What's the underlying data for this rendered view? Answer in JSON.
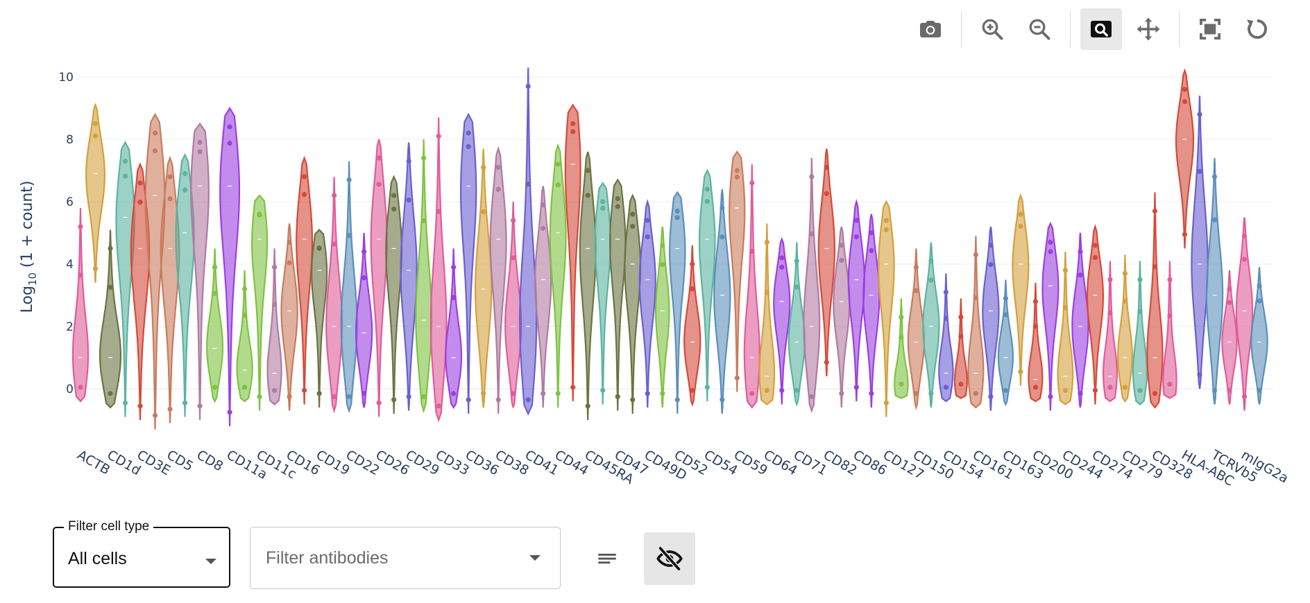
{
  "toolbar": {
    "buttons": [
      {
        "icon": "camera-icon",
        "label": "Download plot as png"
      },
      {
        "icon": "zoom-in-icon",
        "label": "Zoom in"
      },
      {
        "icon": "zoom-out-icon",
        "label": "Zoom out"
      },
      {
        "icon": "zoom-icon",
        "label": "Zoom",
        "active": true
      },
      {
        "icon": "pan-icon",
        "label": "Pan"
      },
      {
        "icon": "autoscale-icon",
        "label": "Autoscale"
      },
      {
        "icon": "reset-axes-icon",
        "label": "Reset axes"
      }
    ]
  },
  "controls": {
    "cell_filter": {
      "label": "Filter cell type",
      "value": "All cells"
    },
    "antibody_filter": {
      "placeholder": "Filter antibodies"
    },
    "list_icon": "list-icon",
    "visibility_icon": "eye-off-icon"
  },
  "chart_data": {
    "type": "violin",
    "ylabel": "Log10 (1 + count)",
    "ylabel_parts": {
      "base": "Log",
      "sub": "10",
      "rest": " (1 + count)"
    },
    "ylim": [
      -1.4,
      10.5
    ],
    "yticks": [
      0,
      2,
      4,
      6,
      8,
      10
    ],
    "grid": true,
    "series": [
      {
        "name": "ACTB",
        "color": "#e05c9a",
        "min": -0.4,
        "max": 5.8,
        "peak": 1.0,
        "width": 0.6
      },
      {
        "name": "ACTB",
        "color": "#d4a03e",
        "min": 3.4,
        "max": 9.1,
        "peak": 6.9,
        "width": 0.7
      },
      {
        "name": "CD1d",
        "color": "#6b7342",
        "min": -0.6,
        "max": 5.1,
        "peak": 1.0,
        "width": 0.8
      },
      {
        "name": "CD1d",
        "color": "#5cb3a0",
        "min": -0.9,
        "max": 7.9,
        "peak": 5.5,
        "width": 0.7
      },
      {
        "name": "CD3E",
        "color": "#d44a3a",
        "min": -1.0,
        "max": 7.2,
        "peak": 4.5,
        "width": 0.7
      },
      {
        "name": "CD3E",
        "color": "#c97b5d",
        "min": -1.3,
        "max": 8.8,
        "peak": 6.2,
        "width": 0.75
      },
      {
        "name": "CD5",
        "color": "#c97b5d",
        "min": -1.1,
        "max": 7.4,
        "peak": 4.5,
        "width": 0.7
      },
      {
        "name": "CD5",
        "color": "#5cb3a0",
        "min": -0.9,
        "max": 7.5,
        "peak": 5.0,
        "width": 0.7
      },
      {
        "name": "CD8",
        "color": "#b07aa1",
        "min": -1.0,
        "max": 8.5,
        "peak": 6.5,
        "width": 0.7
      },
      {
        "name": "CD8",
        "color": "#7fc241",
        "min": -0.4,
        "max": 4.5,
        "peak": 1.3,
        "width": 0.6
      },
      {
        "name": "CD11a",
        "color": "#9b3fe0",
        "min": -1.2,
        "max": 9.0,
        "peak": 6.5,
        "width": 0.75
      },
      {
        "name": "CD11a",
        "color": "#7fc241",
        "min": -0.4,
        "max": 3.8,
        "peak": 0.6,
        "width": 0.6
      },
      {
        "name": "CD11c",
        "color": "#7fc241",
        "min": -0.7,
        "max": 6.2,
        "peak": 4.8,
        "width": 0.6
      },
      {
        "name": "CD11c",
        "color": "#b07aa1",
        "min": -0.5,
        "max": 4.5,
        "peak": 0.5,
        "width": 0.55
      },
      {
        "name": "CD16",
        "color": "#c97b5d",
        "min": -0.7,
        "max": 5.3,
        "peak": 2.5,
        "width": 0.6
      },
      {
        "name": "CD16",
        "color": "#d44a3a",
        "min": -0.5,
        "max": 7.4,
        "peak": 4.8,
        "width": 0.6
      },
      {
        "name": "CD19",
        "color": "#6b7342",
        "min": -0.6,
        "max": 5.1,
        "peak": 3.8,
        "width": 0.6
      },
      {
        "name": "CD19",
        "color": "#e05c9a",
        "min": -0.7,
        "max": 6.8,
        "peak": 2.0,
        "width": 0.6
      },
      {
        "name": "CD22",
        "color": "#5b8fb9",
        "min": -0.7,
        "max": 7.3,
        "peak": 2.0,
        "width": 0.6
      },
      {
        "name": "CD22",
        "color": "#9b3fe0",
        "min": -0.6,
        "max": 5.0,
        "peak": 1.8,
        "width": 0.6
      },
      {
        "name": "CD26",
        "color": "#e05c9a",
        "min": -0.9,
        "max": 8.0,
        "peak": 4.8,
        "width": 0.6
      },
      {
        "name": "CD26",
        "color": "#6b7342",
        "min": -0.8,
        "max": 6.8,
        "peak": 4.5,
        "width": 0.6
      },
      {
        "name": "CD29",
        "color": "#6a5fd0",
        "min": -0.7,
        "max": 7.9,
        "peak": 3.8,
        "width": 0.6
      },
      {
        "name": "CD29",
        "color": "#7fc241",
        "min": -0.7,
        "max": 8.0,
        "peak": 2.2,
        "width": 0.6
      },
      {
        "name": "CD33",
        "color": "#e05c9a",
        "min": -1.0,
        "max": 8.7,
        "peak": 2.0,
        "width": 0.6
      },
      {
        "name": "CD33",
        "color": "#9b3fe0",
        "min": -0.6,
        "max": 4.5,
        "peak": 1.0,
        "width": 0.6
      },
      {
        "name": "CD36",
        "color": "#6a5fd0",
        "min": -0.8,
        "max": 8.8,
        "peak": 6.5,
        "width": 0.6
      },
      {
        "name": "CD36",
        "color": "#d4a03e",
        "min": -0.6,
        "max": 7.7,
        "peak": 3.2,
        "width": 0.6
      },
      {
        "name": "CD38",
        "color": "#b07aa1",
        "min": -0.8,
        "max": 7.7,
        "peak": 4.8,
        "width": 0.6
      },
      {
        "name": "CD38",
        "color": "#e05c9a",
        "min": -0.6,
        "max": 6.0,
        "peak": 2.0,
        "width": 0.6
      },
      {
        "name": "CD41",
        "color": "#6a5fd0",
        "min": -0.8,
        "max": 10.3,
        "peak": 2.0,
        "width": 0.65
      },
      {
        "name": "CD41",
        "color": "#b07aa1",
        "min": -0.6,
        "max": 6.5,
        "peak": 3.5,
        "width": 0.6
      },
      {
        "name": "CD44",
        "color": "#7fc241",
        "min": -0.6,
        "max": 7.8,
        "peak": 5.0,
        "width": 0.6
      },
      {
        "name": "CD44",
        "color": "#d44a3a",
        "min": -0.4,
        "max": 9.1,
        "peak": 7.2,
        "width": 0.6
      },
      {
        "name": "CD45RA",
        "color": "#6b7342",
        "min": -1.0,
        "max": 7.6,
        "peak": 4.5,
        "width": 0.6
      },
      {
        "name": "CD45RA",
        "color": "#5cb3a0",
        "min": -0.5,
        "max": 6.6,
        "peak": 4.8,
        "width": 0.6
      },
      {
        "name": "CD47",
        "color": "#6b7342",
        "min": -0.7,
        "max": 6.7,
        "peak": 4.8,
        "width": 0.6
      },
      {
        "name": "CD47",
        "color": "#6b7342",
        "min": -0.8,
        "max": 6.2,
        "peak": 4.0,
        "width": 0.6
      },
      {
        "name": "CD49D",
        "color": "#6a5fd0",
        "min": -0.6,
        "max": 6.0,
        "peak": 3.5,
        "width": 0.6
      },
      {
        "name": "CD49D",
        "color": "#7fc241",
        "min": -0.6,
        "max": 5.2,
        "peak": 2.5,
        "width": 0.5
      },
      {
        "name": "CD52",
        "color": "#5b8fb9",
        "min": -0.8,
        "max": 6.3,
        "peak": 4.5,
        "width": 0.6
      },
      {
        "name": "CD52",
        "color": "#d44a3a",
        "min": -0.5,
        "max": 4.6,
        "peak": 1.5,
        "width": 0.6
      },
      {
        "name": "CD54",
        "color": "#5cb3a0",
        "min": -0.4,
        "max": 7.0,
        "peak": 4.8,
        "width": 0.6
      },
      {
        "name": "CD54",
        "color": "#5b8fb9",
        "min": -0.8,
        "max": 6.4,
        "peak": 3.0,
        "width": 0.6
      },
      {
        "name": "CD59",
        "color": "#c97b5d",
        "min": -0.1,
        "max": 7.6,
        "peak": 5.8,
        "width": 0.6
      },
      {
        "name": "CD59",
        "color": "#e05c9a",
        "min": -0.6,
        "max": 7.2,
        "peak": 1.0,
        "width": 0.6
      },
      {
        "name": "CD64",
        "color": "#d4a03e",
        "min": -0.5,
        "max": 5.3,
        "peak": 0.4,
        "width": 0.6
      },
      {
        "name": "CD64",
        "color": "#9b3fe0",
        "min": -0.5,
        "max": 4.8,
        "peak": 2.8,
        "width": 0.6
      },
      {
        "name": "CD71",
        "color": "#5cb3a0",
        "min": -0.5,
        "max": 4.7,
        "peak": 1.5,
        "width": 0.6
      },
      {
        "name": "CD71",
        "color": "#b07aa1",
        "min": -0.7,
        "max": 7.4,
        "peak": 2.0,
        "width": 0.6
      },
      {
        "name": "CD82",
        "color": "#d44a3a",
        "min": 0.4,
        "max": 7.7,
        "peak": 4.5,
        "width": 0.6
      },
      {
        "name": "CD82",
        "color": "#b07aa1",
        "min": -0.6,
        "max": 5.2,
        "peak": 2.8,
        "width": 0.6
      },
      {
        "name": "CD86",
        "color": "#9b3fe0",
        "min": -0.4,
        "max": 6.0,
        "peak": 3.5,
        "width": 0.6
      },
      {
        "name": "CD86",
        "color": "#9b3fe0",
        "min": -0.6,
        "max": 5.6,
        "peak": 3.0,
        "width": 0.6
      },
      {
        "name": "CD127",
        "color": "#d4a03e",
        "min": -0.9,
        "max": 6.0,
        "peak": 4.0,
        "width": 0.6
      },
      {
        "name": "CD127",
        "color": "#7fc241",
        "min": -0.3,
        "max": 2.9,
        "peak": 0.1,
        "width": 0.55
      },
      {
        "name": "CD150",
        "color": "#c97b5d",
        "min": -0.6,
        "max": 4.5,
        "peak": 1.5,
        "width": 0.6
      },
      {
        "name": "CD150",
        "color": "#5cb3a0",
        "min": -0.6,
        "max": 4.7,
        "peak": 2.0,
        "width": 0.6
      },
      {
        "name": "CD154",
        "color": "#6a5fd0",
        "min": -0.4,
        "max": 3.7,
        "peak": 0.5,
        "width": 0.55
      },
      {
        "name": "CD154",
        "color": "#d44a3a",
        "min": -0.3,
        "max": 2.9,
        "peak": 0.2,
        "width": 0.5
      },
      {
        "name": "CD161",
        "color": "#c97b5d",
        "min": -0.6,
        "max": 4.9,
        "peak": 0.5,
        "width": 0.6
      },
      {
        "name": "CD161",
        "color": "#6a5fd0",
        "min": -0.7,
        "max": 5.2,
        "peak": 2.5,
        "width": 0.6
      },
      {
        "name": "CD163",
        "color": "#5b8fb9",
        "min": -0.5,
        "max": 3.5,
        "peak": 1.0,
        "width": 0.55
      },
      {
        "name": "CD163",
        "color": "#d4a03e",
        "min": 0.1,
        "max": 6.2,
        "peak": 4.0,
        "width": 0.6
      },
      {
        "name": "CD200",
        "color": "#d44a3a",
        "min": -0.4,
        "max": 3.4,
        "peak": 0.3,
        "width": 0.55
      },
      {
        "name": "CD200",
        "color": "#9b3fe0",
        "min": -0.7,
        "max": 5.3,
        "peak": 3.3,
        "width": 0.6
      },
      {
        "name": "CD244",
        "color": "#d4a03e",
        "min": -0.5,
        "max": 4.4,
        "peak": 0.4,
        "width": 0.6
      },
      {
        "name": "CD244",
        "color": "#9b3fe0",
        "min": -0.6,
        "max": 5.0,
        "peak": 2.0,
        "width": 0.6
      },
      {
        "name": "CD274",
        "color": "#d44a3a",
        "min": -0.5,
        "max": 5.2,
        "peak": 3.0,
        "width": 0.6
      },
      {
        "name": "CD274",
        "color": "#e05c9a",
        "min": -0.4,
        "max": 4.1,
        "peak": 0.4,
        "width": 0.55
      },
      {
        "name": "CD279",
        "color": "#d4a03e",
        "min": -0.4,
        "max": 4.3,
        "peak": 1.0,
        "width": 0.55
      },
      {
        "name": "CD279",
        "color": "#5cb3a0",
        "min": -0.5,
        "max": 4.1,
        "peak": 0.5,
        "width": 0.55
      },
      {
        "name": "CD328",
        "color": "#d44a3a",
        "min": -0.6,
        "max": 6.3,
        "peak": 1.0,
        "width": 0.6
      },
      {
        "name": "CD328",
        "color": "#e05c9a",
        "min": -0.3,
        "max": 4.1,
        "peak": 0.2,
        "width": 0.55
      },
      {
        "name": "HLA-ABC",
        "color": "#d44a3a",
        "min": 4.5,
        "max": 10.2,
        "peak": 8.0,
        "width": 0.65
      },
      {
        "name": "HLA-ABC",
        "color": "#6a5fd0",
        "min": 0.0,
        "max": 9.4,
        "peak": 4.0,
        "width": 0.6
      },
      {
        "name": "TCRVb5",
        "color": "#5b8fb9",
        "min": -0.5,
        "max": 7.4,
        "peak": 3.0,
        "width": 0.6
      },
      {
        "name": "TCRVb5",
        "color": "#e05c9a",
        "min": -0.5,
        "max": 3.8,
        "peak": 1.5,
        "width": 0.55
      },
      {
        "name": "mIgG2a",
        "color": "#e05c9a",
        "min": -0.7,
        "max": 5.5,
        "peak": 2.5,
        "width": 0.6
      },
      {
        "name": "mIgG2a",
        "color": "#5b8fb9",
        "min": -0.5,
        "max": 3.9,
        "peak": 1.5,
        "width": 0.6
      }
    ]
  }
}
